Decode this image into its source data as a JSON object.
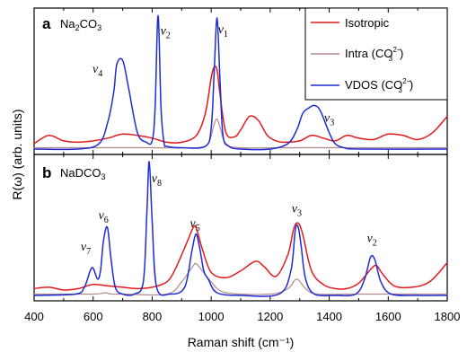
{
  "chart_data": [
    {
      "type": "line",
      "panel_label": "a",
      "title_parts": {
        "main": "Na",
        "sub": "2",
        "rest": "CO",
        "sub2": "3"
      },
      "xlabel": "Raman shift (cm⁻¹)",
      "ylabel": "R(ω) (arb. units)",
      "xlim": [
        400,
        1800
      ],
      "ylim": [
        0,
        1
      ],
      "xticks": [
        "400",
        "600",
        "800",
        "1000",
        "1200",
        "1400",
        "1600",
        "1800"
      ],
      "legend_position": "top-right",
      "legend": [
        {
          "label": "Isotropic",
          "color": "#e31a1c"
        },
        {
          "label": "Intra (CO",
          "sup": "2−",
          "sub": "3",
          "tail": ")",
          "color": "#b08a8a"
        },
        {
          "label": "VDOS (CO",
          "sup": "2−",
          "sub": "3",
          "tail": ")",
          "color": "#1f2bd6"
        }
      ],
      "series": [
        {
          "name": "Isotropic",
          "color": "#e31a1c",
          "x": [
            400,
            450,
            500,
            550,
            600,
            650,
            700,
            750,
            800,
            850,
            900,
            950,
            980,
            1000,
            1010,
            1020,
            1030,
            1050,
            1080,
            1100,
            1130,
            1160,
            1190,
            1220,
            1250,
            1300,
            1340,
            1380,
            1420,
            1460,
            1500,
            1550,
            1600,
            1650,
            1700,
            1750,
            1800
          ],
          "y": [
            0.04,
            0.1,
            0.06,
            0.05,
            0.06,
            0.08,
            0.11,
            0.1,
            0.08,
            0.05,
            0.05,
            0.1,
            0.26,
            0.52,
            0.6,
            0.58,
            0.4,
            0.12,
            0.09,
            0.14,
            0.24,
            0.21,
            0.1,
            0.06,
            0.05,
            0.06,
            0.1,
            0.08,
            0.06,
            0.1,
            0.08,
            0.07,
            0.11,
            0.1,
            0.07,
            0.12,
            0.24
          ]
        },
        {
          "name": "Intra (CO3 2−)",
          "color": "#b08a8a",
          "x": [
            400,
            600,
            800,
            950,
            990,
            1010,
            1020,
            1030,
            1050,
            1100,
            1300,
            1500,
            1800
          ],
          "y": [
            0.01,
            0.01,
            0.01,
            0.01,
            0.04,
            0.18,
            0.22,
            0.16,
            0.04,
            0.01,
            0.01,
            0.01,
            0.01
          ]
        },
        {
          "name": "VDOS (CO3 2−)",
          "color": "#1f2bd6",
          "x": [
            400,
            550,
            620,
            650,
            670,
            680,
            700,
            720,
            750,
            780,
            800,
            810,
            820,
            830,
            840,
            850,
            900,
            980,
            1000,
            1010,
            1020,
            1030,
            1040,
            1060,
            1100,
            1200,
            1260,
            1290,
            1310,
            1330,
            1350,
            1370,
            1400,
            1420,
            1450,
            1500,
            1800
          ],
          "y": [
            0.0,
            0.0,
            0.04,
            0.2,
            0.42,
            0.62,
            0.65,
            0.45,
            0.12,
            0.05,
            0.06,
            0.3,
            0.98,
            0.3,
            0.05,
            0.02,
            0.01,
            0.02,
            0.15,
            0.55,
            0.96,
            0.5,
            0.1,
            0.02,
            0.0,
            0.0,
            0.04,
            0.14,
            0.26,
            0.3,
            0.32,
            0.28,
            0.12,
            0.04,
            0.01,
            0.0,
            0.0
          ]
        }
      ],
      "annotations": [
        {
          "base": "v",
          "sub": "4",
          "x": 615,
          "y": 0.56
        },
        {
          "base": "v",
          "sub": "2",
          "x": 845,
          "y": 0.84
        },
        {
          "base": "v",
          "sub": "1",
          "x": 1040,
          "y": 0.85
        },
        {
          "base": "v",
          "sub": "3",
          "x": 1400,
          "y": 0.2
        }
      ]
    },
    {
      "type": "line",
      "panel_label": "b",
      "title_parts": {
        "main": "NaDCO",
        "sub": "3"
      },
      "xlim": [
        400,
        1800
      ],
      "ylim": [
        0,
        1
      ],
      "series": [
        {
          "name": "Isotropic",
          "color": "#e31a1c",
          "x": [
            400,
            450,
            500,
            550,
            600,
            650,
            700,
            750,
            800,
            850,
            880,
            920,
            940,
            950,
            970,
            1000,
            1050,
            1100,
            1150,
            1180,
            1220,
            1260,
            1280,
            1295,
            1310,
            1340,
            1380,
            1420,
            1460,
            1500,
            1540,
            1560,
            1580,
            1620,
            1680,
            1740,
            1800
          ],
          "y": [
            0.05,
            0.06,
            0.04,
            0.05,
            0.08,
            0.07,
            0.06,
            0.05,
            0.06,
            0.1,
            0.2,
            0.4,
            0.5,
            0.49,
            0.34,
            0.17,
            0.13,
            0.18,
            0.25,
            0.21,
            0.14,
            0.3,
            0.49,
            0.53,
            0.45,
            0.18,
            0.08,
            0.05,
            0.05,
            0.09,
            0.19,
            0.22,
            0.16,
            0.07,
            0.06,
            0.1,
            0.24
          ]
        },
        {
          "name": "Intra (CO3 2−)",
          "color": "#b08a8a",
          "x": [
            400,
            600,
            640,
            660,
            700,
            850,
            900,
            940,
            950,
            970,
            1000,
            1050,
            1200,
            1260,
            1290,
            1320,
            1360,
            1500,
            1800
          ],
          "y": [
            0.01,
            0.01,
            0.02,
            0.01,
            0.01,
            0.01,
            0.1,
            0.22,
            0.23,
            0.18,
            0.1,
            0.02,
            0.01,
            0.05,
            0.12,
            0.05,
            0.01,
            0.01,
            0.01
          ]
        },
        {
          "name": "VDOS (CO3 2−)",
          "color": "#1f2bd6",
          "x": [
            400,
            540,
            570,
            590,
            600,
            615,
            625,
            635,
            648,
            660,
            675,
            700,
            740,
            770,
            782,
            790,
            800,
            815,
            860,
            910,
            935,
            948,
            960,
            975,
            990,
            1020,
            1100,
            1230,
            1270,
            1285,
            1295,
            1305,
            1320,
            1350,
            1420,
            1490,
            1520,
            1540,
            1555,
            1575,
            1610,
            1700,
            1800
          ],
          "y": [
            0.0,
            0.01,
            0.06,
            0.18,
            0.2,
            0.12,
            0.18,
            0.4,
            0.5,
            0.28,
            0.06,
            0.01,
            0.01,
            0.1,
            0.6,
            0.98,
            0.55,
            0.06,
            0.01,
            0.06,
            0.33,
            0.45,
            0.36,
            0.18,
            0.12,
            0.02,
            0.0,
            0.01,
            0.18,
            0.48,
            0.5,
            0.36,
            0.12,
            0.01,
            0.0,
            0.01,
            0.12,
            0.28,
            0.26,
            0.1,
            0.01,
            0.0,
            0.0
          ]
        }
      ],
      "annotations": [
        {
          "base": "v",
          "sub": "7",
          "x": 575,
          "y": 0.33
        },
        {
          "base": "v",
          "sub": "6",
          "x": 635,
          "y": 0.56
        },
        {
          "base": "v",
          "sub": "8",
          "x": 815,
          "y": 0.83
        },
        {
          "base": "v",
          "sub": "5",
          "x": 945,
          "y": 0.5
        },
        {
          "base": "v",
          "sub": "3",
          "x": 1290,
          "y": 0.61
        },
        {
          "base": "v",
          "sub": "2",
          "x": 1545,
          "y": 0.39
        }
      ]
    }
  ]
}
